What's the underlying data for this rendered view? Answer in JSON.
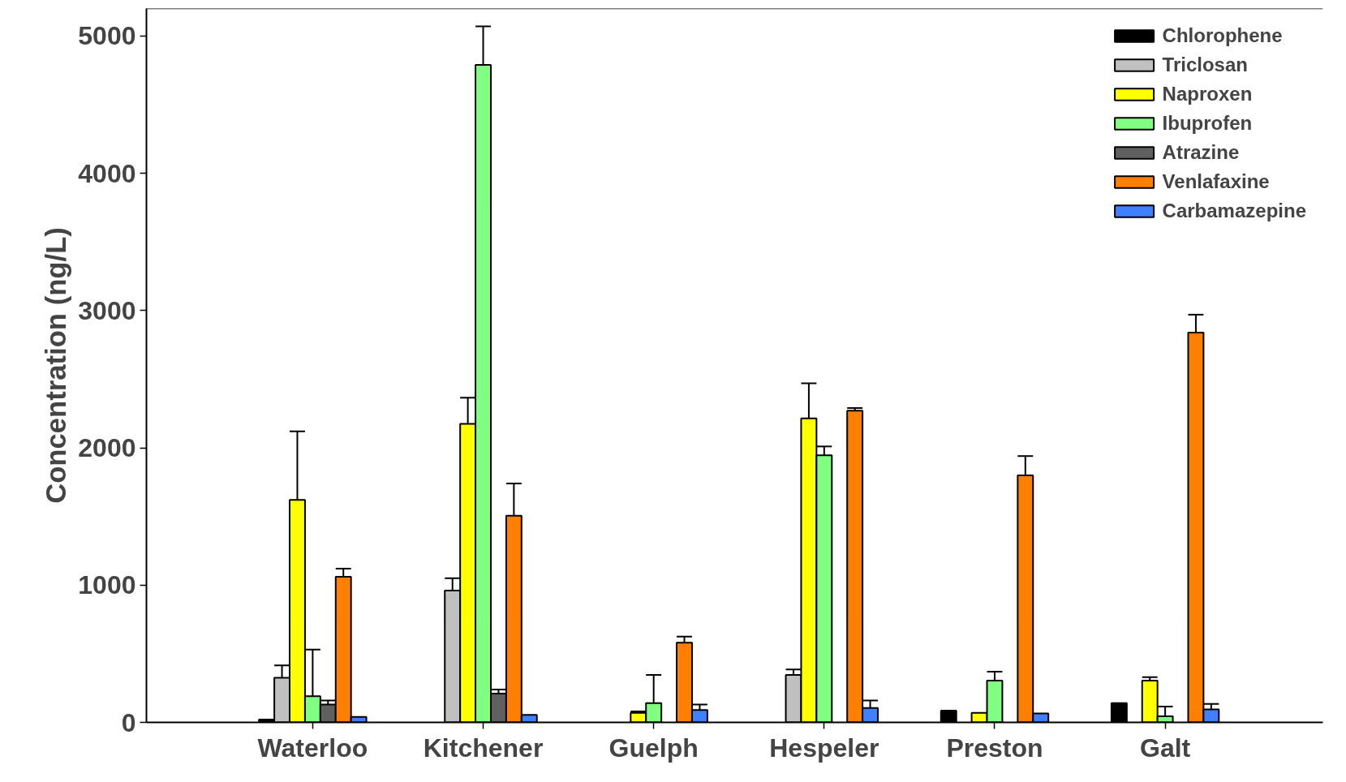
{
  "chart_data": {
    "type": "bar",
    "ylabel": "Concentration (ng/L)",
    "categories": [
      "Waterloo",
      "Kitchener",
      "Guelph",
      "Hespeler",
      "Preston",
      "Galt"
    ],
    "ylim": [
      0,
      5200
    ],
    "yticks": [
      0,
      1000,
      2000,
      3000,
      4000,
      5000
    ],
    "grid": false,
    "legend": "top right",
    "series": [
      {
        "name": "Chlorophene",
        "color": "#000000",
        "values": [
          20,
          null,
          null,
          null,
          85,
          140
        ],
        "errors": [
          null,
          null,
          null,
          null,
          null,
          null
        ]
      },
      {
        "name": "Triclosan",
        "color": "#c0c0c0",
        "values": [
          325,
          960,
          null,
          345,
          null,
          null
        ],
        "errors": [
          [
            325,
            415
          ],
          [
            960,
            1050
          ],
          null,
          [
            345,
            385
          ],
          null,
          null
        ]
      },
      {
        "name": "Naproxen",
        "color": "#ffff00",
        "values": [
          1620,
          2175,
          70,
          2215,
          70,
          305
        ],
        "errors": [
          [
            1620,
            2120
          ],
          [
            2175,
            2365
          ],
          [
            70,
            80
          ],
          [
            2215,
            2470
          ],
          null,
          [
            305,
            330
          ]
        ]
      },
      {
        "name": "Ibuprofen",
        "color": "#80ff80",
        "values": [
          190,
          4790,
          140,
          1945,
          305,
          45
        ],
        "errors": [
          [
            190,
            530
          ],
          [
            4790,
            5070
          ],
          [
            140,
            345
          ],
          [
            1945,
            2010
          ],
          [
            305,
            370
          ],
          [
            45,
            115
          ]
        ]
      },
      {
        "name": "Atrazine",
        "color": "#606060",
        "values": [
          130,
          210,
          null,
          null,
          null,
          null
        ],
        "errors": [
          [
            130,
            160
          ],
          [
            210,
            240
          ],
          null,
          null,
          null,
          null
        ]
      },
      {
        "name": "Venlafaxine",
        "color": "#ff8000",
        "values": [
          1060,
          1505,
          580,
          2270,
          1800,
          2840
        ],
        "errors": [
          [
            1060,
            1120
          ],
          [
            1505,
            1740
          ],
          [
            580,
            625
          ],
          [
            2270,
            2290
          ],
          [
            1800,
            1940
          ],
          [
            2840,
            2970
          ]
        ]
      },
      {
        "name": "Carbamazepine",
        "color": "#4080ff",
        "values": [
          40,
          55,
          90,
          105,
          65,
          95
        ],
        "errors": [
          null,
          null,
          [
            90,
            130
          ],
          [
            105,
            160
          ],
          null,
          [
            95,
            135
          ]
        ]
      }
    ]
  }
}
